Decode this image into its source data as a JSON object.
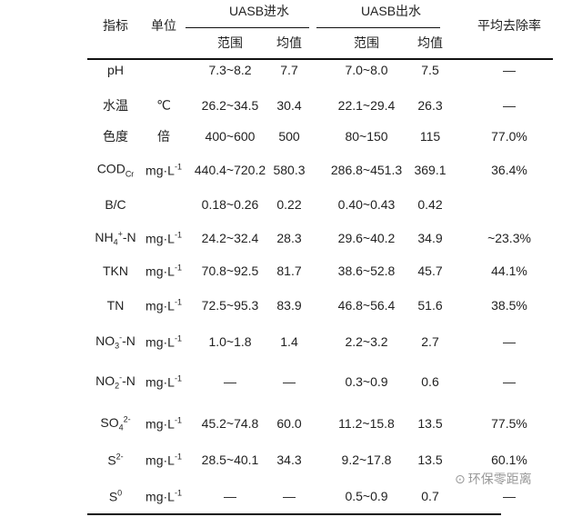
{
  "header": {
    "indicator": "指标",
    "unit": "单位",
    "influent": "UASB进水",
    "effluent": "UASB出水",
    "range": "范围",
    "mean": "均值",
    "removal": "平均去除率"
  },
  "rows": [
    {
      "label": {
        "base": "pH"
      },
      "unit": {
        "base": ""
      },
      "in_range": "7.3~8.2",
      "in_mean": "7.7",
      "out_range": "7.0~8.0",
      "out_mean": "7.5",
      "removal": "—"
    },
    {
      "label": {
        "base": "水温"
      },
      "unit": {
        "base": "℃"
      },
      "in_range": "26.2~34.5",
      "in_mean": "30.4",
      "out_range": "22.1~29.4",
      "out_mean": "26.3",
      "removal": "—"
    },
    {
      "label": {
        "base": "色度"
      },
      "unit": {
        "base": "倍"
      },
      "in_range": "400~600",
      "in_mean": "500",
      "out_range": "80~150",
      "out_mean": "115",
      "removal": "77.0%"
    },
    {
      "label": {
        "base": "COD",
        "sub": "Cr"
      },
      "unit": {
        "base": "mg·L",
        "sup": "-1"
      },
      "in_range": "440.4~720.2",
      "in_mean": "580.3",
      "out_range": "286.8~451.3",
      "out_mean": "369.1",
      "removal": "36.4%"
    },
    {
      "label": {
        "base": "B/C"
      },
      "unit": {
        "base": ""
      },
      "in_range": "0.18~0.26",
      "in_mean": "0.22",
      "out_range": "0.40~0.43",
      "out_mean": "0.42",
      "removal": ""
    },
    {
      "label": {
        "base": "NH",
        "sub": "4",
        "sup": "+",
        "suffix": "-N"
      },
      "unit": {
        "base": "mg·L",
        "sup": "-1"
      },
      "in_range": "24.2~32.4",
      "in_mean": "28.3",
      "out_range": "29.6~40.2",
      "out_mean": "34.9",
      "removal": "~23.3%"
    },
    {
      "label": {
        "base": "TKN"
      },
      "unit": {
        "base": "mg·L",
        "sup": "-1"
      },
      "in_range": "70.8~92.5",
      "in_mean": "81.7",
      "out_range": "38.6~52.8",
      "out_mean": "45.7",
      "removal": "44.1%"
    },
    {
      "label": {
        "base": "TN"
      },
      "unit": {
        "base": "mg·L",
        "sup": "-1"
      },
      "in_range": "72.5~95.3",
      "in_mean": "83.9",
      "out_range": "46.8~56.4",
      "out_mean": "51.6",
      "removal": "38.5%"
    },
    {
      "label": {
        "base": "NO",
        "sub": "3",
        "sup": "-",
        "suffix": "-N"
      },
      "unit": {
        "base": "mg·L",
        "sup": "-1"
      },
      "in_range": "1.0~1.8",
      "in_mean": "1.4",
      "out_range": "2.2~3.2",
      "out_mean": "2.7",
      "removal": "—"
    },
    {
      "label": {
        "base": "NO",
        "sub": "2",
        "sup": "-",
        "suffix": "-N"
      },
      "unit": {
        "base": "mg·L",
        "sup": "-1"
      },
      "in_range": "—",
      "in_mean": "—",
      "out_range": "0.3~0.9",
      "out_mean": "0.6",
      "removal": "—"
    },
    {
      "label": {
        "base": "SO",
        "sub": "4",
        "sup": "2-"
      },
      "unit": {
        "base": "mg·L",
        "sup": "-1"
      },
      "in_range": "45.2~74.8",
      "in_mean": "60.0",
      "out_range": "11.2~15.8",
      "out_mean": "13.5",
      "removal": "77.5%"
    },
    {
      "label": {
        "base": "S",
        "sup": "2-"
      },
      "unit": {
        "base": "mg·L",
        "sup": "-1"
      },
      "in_range": "28.5~40.1",
      "in_mean": "34.3",
      "out_range": "9.2~17.8",
      "out_mean": "13.5",
      "removal": "60.1%"
    },
    {
      "label": {
        "base": "S",
        "sup": "0"
      },
      "unit": {
        "base": "mg·L",
        "sup": "-1"
      },
      "in_range": "—",
      "in_mean": "—",
      "out_range": "0.5~0.9",
      "out_mean": "0.7",
      "removal": "—"
    }
  ],
  "watermark": {
    "text": "环保零距离",
    "icon": "wechat-icon"
  }
}
